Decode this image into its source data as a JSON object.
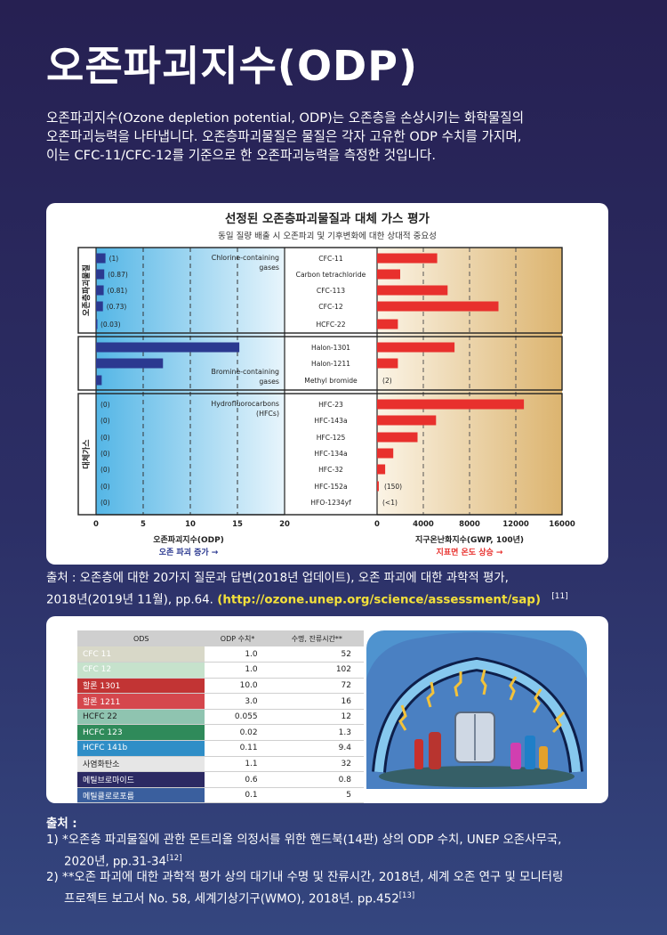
{
  "title": "오존파괴지수(ODP)",
  "intro": [
    "오존파괴지수(Ozone depletion potential, ODP)는 오존층을 손상시키는 화학물질의",
    "오존파괴능력을 나타냅니다. 오존층파괴물질은 물질은 각자 고유한 ODP 수치를 가지며,",
    "이는 CFC-11/CFC-12를 기준으로 한 오존파괴능력을 측정한 것입니다."
  ],
  "chart_data": {
    "type": "bar",
    "title": "선정된 오존층파괴물질과 대체 가스 평가",
    "subtitle": "동일 질량 배출 시 오존파괴 및 기후변화에 대한 상대적 중요성",
    "group_labels": {
      "ods": "오존층파괴물질",
      "alt": "대체가스"
    },
    "annotations": {
      "chlorine": [
        "Chlorine-containing",
        "gases"
      ],
      "bromine": [
        "Bromine-containing",
        "gases"
      ],
      "hfc": [
        "Hydrofluorocarbons",
        "(HFCs)"
      ]
    },
    "left": {
      "xlabel": "오존파괴지수(ODP)",
      "arrow_label": "오존 파괴 증가 →",
      "xlim": [
        0,
        20
      ],
      "ticks": [
        "0",
        "5",
        "10",
        "15",
        "20"
      ],
      "values": [
        1,
        0.87,
        0.81,
        0.73,
        0.03,
        15.2,
        7.1,
        0.6,
        0,
        0,
        0,
        0,
        0,
        0,
        0
      ],
      "value_labels": [
        "(1)",
        "(0.87)",
        "(0.81)",
        "(0.73)",
        "(0.03)",
        "",
        "",
        "",
        "(0)",
        "(0)",
        "(0)",
        "(0)",
        "(0)",
        "(0)",
        "(0)"
      ]
    },
    "categories": [
      "CFC-11",
      "Carbon tetrachloride",
      "CFC-113",
      "CFC-12",
      "HCFC-22",
      "Halon-1301",
      "Halon-1211",
      "Methyl bromide",
      "HFC-23",
      "HFC-143a",
      "HFC-125",
      "HFC-134a",
      "HFC-32",
      "HFC-152a",
      "HFO-1234yf"
    ],
    "right": {
      "xlabel": "지구온난화지수(GWP, 100년)",
      "arrow_label": "지표면 온도 상승 →",
      "xlim": [
        0,
        16000
      ],
      "ticks": [
        "0",
        "4000",
        "8000",
        "12000",
        "16000"
      ],
      "values": [
        5200,
        2000,
        6100,
        10500,
        1800,
        6700,
        1800,
        2,
        12700,
        5100,
        3500,
        1400,
        700,
        150,
        1
      ],
      "value_labels": [
        "",
        "",
        "",
        "",
        "",
        "",
        "",
        "(2)",
        "",
        "",
        "",
        "",
        "",
        "(150)",
        "(<1)"
      ]
    },
    "colors": {
      "odp_bar": "#2b3990",
      "gwp_bar": "#e8302d"
    }
  },
  "source1": {
    "text": "출처 : 오존층에 대한 20가지 질문과 답변(2018년 업데이트), 오존 파괴에 대한 과학적 평가,",
    "text2": "2018년(2019년 11월), pp.64.",
    "url": "(http://ozone.unep.org/science/assessment/sap)",
    "ref": "[11]"
  },
  "table": {
    "headers": [
      "ODS",
      "ODP 수치*",
      "수명, 잔류시간**"
    ],
    "rows": [
      {
        "name": "CFC 11",
        "odp": "1.0",
        "life": "52",
        "color": "#d8d8c8",
        "dark": false
      },
      {
        "name": "CFC 12",
        "odp": "1.0",
        "life": "102",
        "color": "#c6e2cc",
        "dark": false
      },
      {
        "name": "할론 1301",
        "odp": "10.0",
        "life": "72",
        "color": "#c23434",
        "dark": false
      },
      {
        "name": "할론 1211",
        "odp": "3.0",
        "life": "16",
        "color": "#d5474d",
        "dark": false
      },
      {
        "name": "HCFC 22",
        "odp": "0.055",
        "life": "12",
        "color": "#8fc4b0",
        "dark": true
      },
      {
        "name": "HCFC 123",
        "odp": "0.02",
        "life": "1.3",
        "color": "#2f8a5a",
        "dark": false
      },
      {
        "name": "HCFC 141b",
        "odp": "0.11",
        "life": "9.4",
        "color": "#2f8ec7",
        "dark": false
      },
      {
        "name": "사염화탄소",
        "odp": "1.1",
        "life": "32",
        "color": "#e6e6e6",
        "dark": true
      },
      {
        "name": "메틸브로마이드",
        "odp": "0.6",
        "life": "0.8",
        "color": "#2c2a63",
        "dark": false
      },
      {
        "name": "메틸클로로포름",
        "odp": "0.1",
        "life": "5",
        "color": "#3a5f9e",
        "dark": false
      }
    ]
  },
  "footnotes": {
    "title": "출처 :",
    "items": [
      {
        "line1": "1) *오존층 파괴물질에 관한 몬트리올 의정서를 위한 핸드북(14판) 상의 ODP 수치, UNEP 오존사무국,",
        "line2": "2020년, pp.31-34",
        "ref": "[12]"
      },
      {
        "line1": "2) **오존 파괴에 대한 과학적 평가 상의 대기내 수명 및 잔류시간, 2018년, 세계 오존 연구 및 모니터링",
        "line2": "프로젝트 보고서 No. 58, 세계기상기구(WMO), 2018년. pp.452",
        "ref": "[13]"
      }
    ]
  }
}
